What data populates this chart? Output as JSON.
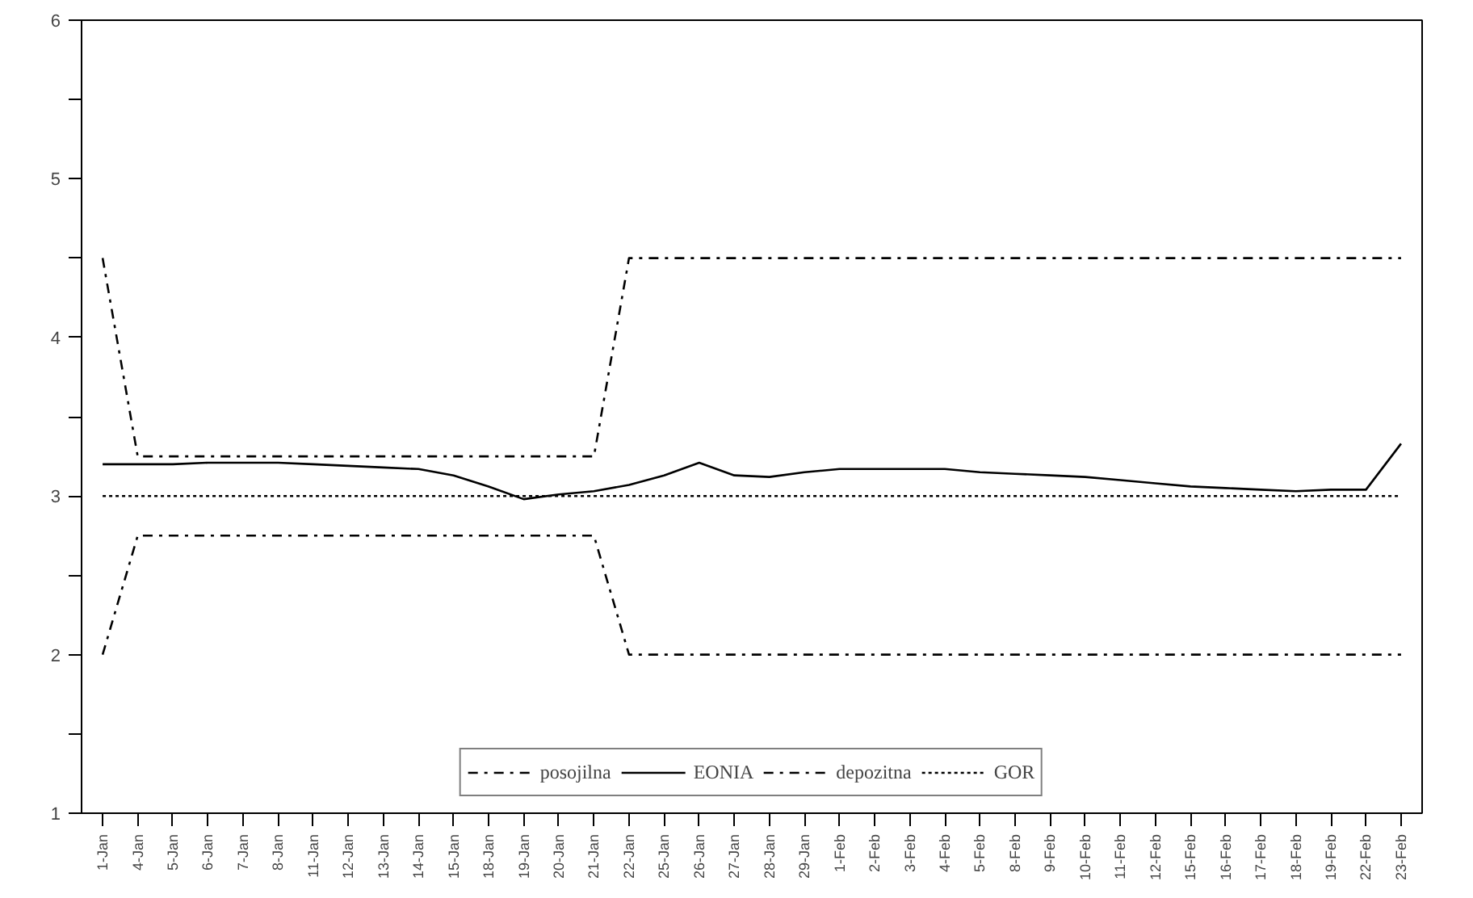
{
  "chart_data": {
    "type": "line",
    "categories": [
      "1-Jan",
      "4-Jan",
      "5-Jan",
      "6-Jan",
      "7-Jan",
      "8-Jan",
      "11-Jan",
      "12-Jan",
      "13-Jan",
      "14-Jan",
      "15-Jan",
      "18-Jan",
      "19-Jan",
      "20-Jan",
      "21-Jan",
      "22-Jan",
      "25-Jan",
      "26-Jan",
      "27-Jan",
      "28-Jan",
      "29-Jan",
      "1-Feb",
      "2-Feb",
      "3-Feb",
      "4-Feb",
      "5-Feb",
      "8-Feb",
      "9-Feb",
      "10-Feb",
      "11-Feb",
      "12-Feb",
      "15-Feb",
      "16-Feb",
      "17-Feb",
      "18-Feb",
      "19-Feb",
      "22-Feb",
      "23-Feb"
    ],
    "series": [
      {
        "name": "posojilna",
        "color": "#000000",
        "line_style": "dashdot",
        "values": [
          4.5,
          3.25,
          3.25,
          3.25,
          3.25,
          3.25,
          3.25,
          3.25,
          3.25,
          3.25,
          3.25,
          3.25,
          3.25,
          3.25,
          3.25,
          4.5,
          4.5,
          4.5,
          4.5,
          4.5,
          4.5,
          4.5,
          4.5,
          4.5,
          4.5,
          4.5,
          4.5,
          4.5,
          4.5,
          4.5,
          4.5,
          4.5,
          4.5,
          4.5,
          4.5,
          4.5,
          4.5,
          4.5
        ]
      },
      {
        "name": "EONIA",
        "color": "#000000",
        "line_style": "solid",
        "values": [
          3.2,
          3.2,
          3.2,
          3.21,
          3.21,
          3.21,
          3.2,
          3.19,
          3.18,
          3.17,
          3.13,
          3.06,
          2.98,
          3.01,
          3.03,
          3.07,
          3.13,
          3.21,
          3.13,
          3.12,
          3.15,
          3.17,
          3.17,
          3.17,
          3.17,
          3.15,
          3.14,
          3.13,
          3.12,
          3.1,
          3.08,
          3.06,
          3.05,
          3.04,
          3.03,
          3.04,
          3.04,
          3.33
        ]
      },
      {
        "name": "depozitna",
        "color": "#000000",
        "line_style": "dashdot",
        "values": [
          2.0,
          2.75,
          2.75,
          2.75,
          2.75,
          2.75,
          2.75,
          2.75,
          2.75,
          2.75,
          2.75,
          2.75,
          2.75,
          2.75,
          2.75,
          2.0,
          2.0,
          2.0,
          2.0,
          2.0,
          2.0,
          2.0,
          2.0,
          2.0,
          2.0,
          2.0,
          2.0,
          2.0,
          2.0,
          2.0,
          2.0,
          2.0,
          2.0,
          2.0,
          2.0,
          2.0,
          2.0,
          2.0
        ]
      },
      {
        "name": "GOR",
        "color": "#000000",
        "line_style": "dotted",
        "values": [
          3,
          3,
          3,
          3,
          3,
          3,
          3,
          3,
          3,
          3,
          3,
          3,
          3,
          3,
          3,
          3,
          3,
          3,
          3,
          3,
          3,
          3,
          3,
          3,
          3,
          3,
          3,
          3,
          3,
          3,
          3,
          3,
          3,
          3,
          3,
          3,
          3,
          3
        ]
      }
    ],
    "ylim": [
      1,
      6
    ],
    "yticks": [
      1,
      {
        "value": 1.5,
        "label": null
      },
      2,
      {
        "value": 2.5,
        "label": null
      },
      3,
      {
        "value": 3.5,
        "label": null
      },
      4,
      {
        "value": 4.5,
        "label": null
      },
      5,
      {
        "value": 5.5,
        "label": null
      },
      6
    ],
    "grid": false,
    "legend": "bottom",
    "marker": "none"
  }
}
